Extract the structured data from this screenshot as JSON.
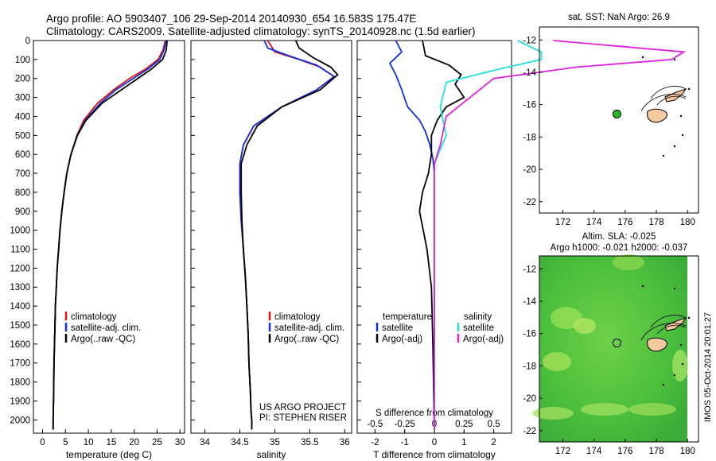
{
  "header": {
    "line1": "Argo profile: AO 5903407_106 29-Sep-2014 20140930_654 16.583S 175.47E",
    "line2": "Climatology: CARS2009. Satellite-adjusted climatology: synTS_20140928.nc (1.5d earlier)"
  },
  "colors": {
    "climatology": "#e01010",
    "satellite": "#1030e0",
    "argo": "#000000",
    "satellite_s": "#20e0e0",
    "argo_s": "#e020e0",
    "land": "#f5c8a0",
    "sla_field": "#5ac840",
    "argo_marker": "#22bb22"
  },
  "chart_data": [
    {
      "id": "temperature",
      "type": "line",
      "xlabel": "temperature (deg C)",
      "ylabel": "",
      "xlim": [
        -2,
        31
      ],
      "ylim": [
        0,
        2070
      ],
      "y_reversed": true,
      "xticks": [
        0,
        5,
        10,
        15,
        20,
        25,
        30
      ],
      "yticks": [
        0,
        100,
        200,
        300,
        400,
        500,
        600,
        700,
        800,
        900,
        1000,
        1100,
        1200,
        1300,
        1400,
        1500,
        1600,
        1700,
        1800,
        1900,
        2000
      ],
      "legend": [
        "climatology",
        "satellite-adj. clim.",
        "Argo(..raw -QC)"
      ],
      "series": [
        {
          "name": "climatology",
          "color": "#e01010",
          "x": [
            26.8,
            26.3,
            25.2,
            22.5,
            19.0,
            15.5,
            12.0,
            9.0,
            7.5,
            6.2,
            5.3,
            4.7,
            4.2,
            3.8,
            3.5,
            3.2,
            3.0,
            2.8,
            2.7,
            2.6,
            2.5,
            2.45,
            2.4,
            2.35,
            2.3,
            2.3
          ],
          "y": [
            0,
            50,
            100,
            150,
            200,
            260,
            330,
            420,
            500,
            600,
            700,
            800,
            900,
            1000,
            1100,
            1200,
            1300,
            1400,
            1500,
            1600,
            1700,
            1800,
            1900,
            1950,
            2000,
            2050
          ]
        },
        {
          "name": "satellite-adj. clim.",
          "color": "#1030e0",
          "x": [
            27.0,
            26.5,
            25.6,
            23.0,
            19.8,
            16.0,
            12.6,
            9.3,
            7.6,
            6.2,
            5.3,
            4.7,
            4.2,
            3.8,
            3.5,
            3.2,
            3.0,
            2.8,
            2.7,
            2.6,
            2.5,
            2.45,
            2.4,
            2.35,
            2.3,
            2.3
          ],
          "y": [
            0,
            50,
            100,
            150,
            200,
            260,
            330,
            420,
            500,
            600,
            700,
            800,
            900,
            1000,
            1100,
            1200,
            1300,
            1400,
            1500,
            1600,
            1700,
            1800,
            1900,
            1950,
            2000,
            2050
          ]
        },
        {
          "name": "Argo(..raw -QC)",
          "color": "#000000",
          "x": [
            27.2,
            27.0,
            26.2,
            23.8,
            20.8,
            17.2,
            13.0,
            9.5,
            7.6,
            6.2,
            5.3,
            4.7,
            4.2,
            3.8,
            3.5,
            3.2,
            3.0,
            2.8,
            2.7,
            2.6,
            2.5,
            2.45,
            2.4,
            2.35,
            2.3,
            2.3
          ],
          "y": [
            0,
            50,
            100,
            150,
            200,
            260,
            330,
            420,
            500,
            600,
            700,
            800,
            900,
            1000,
            1100,
            1200,
            1300,
            1400,
            1500,
            1600,
            1700,
            1800,
            1900,
            1950,
            2000,
            2050
          ]
        }
      ]
    },
    {
      "id": "salinity",
      "type": "line",
      "xlabel": "salinity",
      "ylabel": "",
      "xlim": [
        33.8,
        36.1
      ],
      "ylim": [
        0,
        2070
      ],
      "y_reversed": true,
      "xticks": [
        34,
        34.5,
        35,
        35.5,
        36
      ],
      "legend": [
        "climatology",
        "satellite-adj. clim.",
        "Argo(..raw -QC)"
      ],
      "annotation": [
        "US ARGO PROJECT",
        "PI: STEPHEN RISER"
      ],
      "series": [
        {
          "name": "climatology",
          "color": "#e01010",
          "x": [
            34.9,
            35.0,
            35.35,
            35.65,
            35.85,
            35.6,
            35.1,
            34.7,
            34.55,
            34.5,
            34.5,
            34.52,
            34.55,
            34.58,
            34.6,
            34.62,
            34.63,
            34.65,
            34.66,
            34.67,
            34.67
          ],
          "y": [
            0,
            60,
            100,
            140,
            190,
            260,
            350,
            450,
            550,
            650,
            800,
            950,
            1100,
            1250,
            1400,
            1550,
            1700,
            1850,
            1950,
            2000,
            2050
          ]
        },
        {
          "name": "satellite-adj. clim.",
          "color": "#1030e0",
          "x": [
            34.85,
            34.9,
            35.2,
            35.6,
            35.85,
            35.6,
            35.1,
            34.7,
            34.55,
            34.5,
            34.5,
            34.52,
            34.55,
            34.58,
            34.6,
            34.62,
            34.63,
            34.65,
            34.66,
            34.67,
            34.67
          ],
          "y": [
            0,
            40,
            80,
            130,
            190,
            260,
            350,
            450,
            550,
            650,
            800,
            950,
            1100,
            1250,
            1400,
            1550,
            1700,
            1850,
            1950,
            2000,
            2050
          ]
        },
        {
          "name": "Argo(..raw -QC)",
          "color": "#000000",
          "x": [
            35.3,
            35.35,
            35.55,
            35.8,
            35.9,
            35.65,
            35.1,
            34.75,
            34.6,
            34.52,
            34.52,
            34.53,
            34.55,
            34.58,
            34.6,
            34.62,
            34.63,
            34.65,
            34.66,
            34.67,
            34.67
          ],
          "y": [
            0,
            40,
            90,
            140,
            180,
            260,
            350,
            450,
            550,
            650,
            800,
            950,
            1100,
            1250,
            1400,
            1550,
            1700,
            1850,
            1950,
            2000,
            2050
          ]
        }
      ]
    },
    {
      "id": "differences",
      "type": "line",
      "xlabel": "T difference from climatology",
      "top_label": "S difference from climatology",
      "ylabel": "",
      "xlim": [
        -2.6,
        2.6
      ],
      "ylim": [
        0,
        2070
      ],
      "y_reversed": true,
      "xticks": [
        -2,
        -1,
        0,
        1,
        2
      ],
      "s_xticks": [
        -0.5,
        -0.25,
        0,
        0.25,
        0.5
      ],
      "legend_titles": [
        "temperature",
        "salinity"
      ],
      "legend": [
        "satellite",
        "Argo(-adj)",
        "satellite",
        "Argo(-adj)"
      ],
      "series": [
        {
          "name": "satellite",
          "group": "temperature",
          "color": "#1030e0",
          "x": [
            -1.3,
            -1.1,
            -1.5,
            -1.3,
            -1.1,
            -0.9,
            -0.5,
            -0.3,
            -0.15,
            -0.05,
            0,
            0,
            0,
            0,
            0,
            0,
            0
          ],
          "y": [
            0,
            60,
            120,
            180,
            260,
            350,
            420,
            480,
            550,
            620,
            700,
            900,
            1200,
            1500,
            1800,
            2000,
            2050
          ]
        },
        {
          "name": "Argo(-adj)",
          "group": "temperature",
          "color": "#000000",
          "x": [
            -0.4,
            -0.3,
            0.5,
            0.9,
            0.7,
            1.0,
            0.4,
            0.1,
            -0.1,
            -0.1,
            -0.2,
            -0.4,
            -0.5,
            -0.25,
            -0.1,
            -0.05,
            0
          ],
          "y": [
            0,
            80,
            130,
            180,
            230,
            300,
            350,
            420,
            500,
            600,
            700,
            800,
            900,
            1100,
            1300,
            1600,
            2050
          ]
        },
        {
          "name": "satellite",
          "group": "salinity",
          "color": "#20e0e0",
          "x": [
            0.7,
            0.9,
            0.9,
            0.55,
            0.1,
            0.05,
            0.1,
            0.0,
            0.0,
            0.0,
            0.0
          ],
          "y": [
            0,
            60,
            100,
            150,
            220,
            350,
            500,
            650,
            900,
            1500,
            2050
          ]
        },
        {
          "name": "Argo(-adj)",
          "group": "salinity",
          "color": "#e020e0",
          "x": [
            1.0,
            2.1,
            2.0,
            1.2,
            0.5,
            0.1,
            0.05,
            0.0,
            0.0,
            0.0,
            0.0
          ],
          "y": [
            0,
            60,
            100,
            140,
            200,
            400,
            550,
            650,
            900,
            1500,
            2050
          ]
        }
      ]
    },
    {
      "id": "sst_map",
      "type": "map",
      "title": "sat. SST: NaN Argo: 26.9",
      "xlim": [
        170.5,
        180.7
      ],
      "ylim": [
        -22.7,
        -11.2
      ],
      "xticks": [
        172,
        174,
        176,
        178,
        180
      ],
      "yticks": [
        -12,
        -14,
        -16,
        -18,
        -20,
        -22
      ],
      "argo_position": {
        "lon": 175.47,
        "lat": -16.583
      }
    },
    {
      "id": "sla_map",
      "type": "map",
      "title_lines": [
        "Altim. SLA: -0.025",
        "Argo h1000: -0.021 h2000: -0.037"
      ],
      "xlim": [
        170.5,
        180.7
      ],
      "ylim": [
        -22.7,
        -11.2
      ],
      "xticks": [
        172,
        174,
        176,
        178,
        180
      ],
      "yticks": [
        -12,
        -14,
        -16,
        -18,
        -20,
        -22
      ],
      "argo_position": {
        "lon": 175.47,
        "lat": -16.583
      },
      "vertical_caption": "IMOS 05-Oct-2014 20:01:27"
    }
  ]
}
